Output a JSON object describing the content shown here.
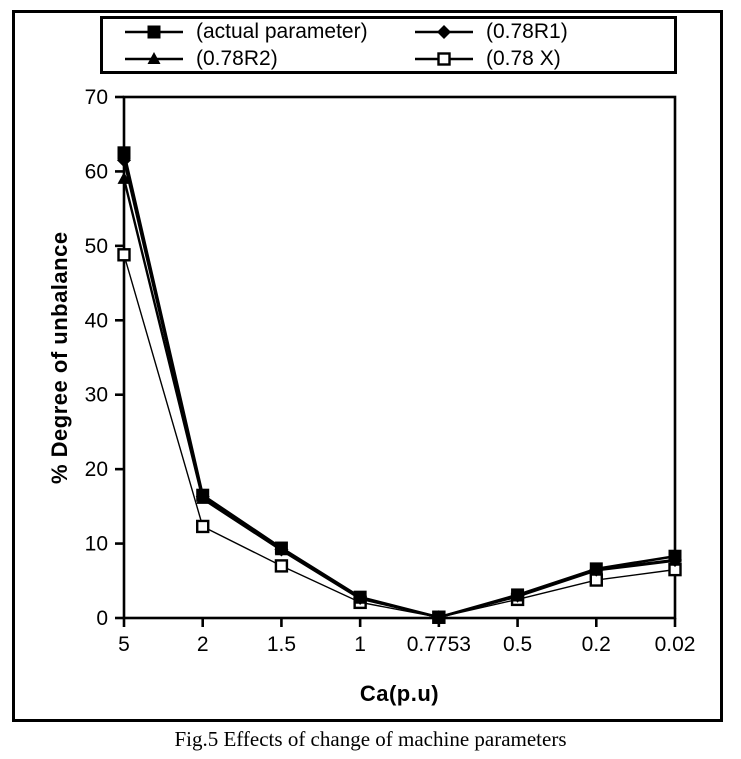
{
  "figure": {
    "caption": "Fig.5 Effects of change of machine parameters"
  },
  "colors": {
    "foreground": "#000000",
    "background": "#ffffff"
  },
  "chart_data": {
    "type": "line",
    "title": "",
    "xlabel": "Ca(p.u)",
    "ylabel": "% Degree of unbalance",
    "categories": [
      "5",
      "2",
      "1.5",
      "1",
      "0.7753",
      "0.5",
      "0.2",
      "0.02"
    ],
    "ylim": [
      0,
      70
    ],
    "yticks": [
      0,
      10,
      20,
      30,
      40,
      50,
      60,
      70
    ],
    "grid": false,
    "legend_position": "top",
    "series": [
      {
        "name": "(actual parameter)",
        "marker": "square-filled",
        "line_width": 2.6,
        "values": [
          62.5,
          16.5,
          9.4,
          2.8,
          0.1,
          3.1,
          6.6,
          8.3
        ]
      },
      {
        "name": "(0.78R1)",
        "marker": "diamond-filled",
        "line_width": 2.4,
        "values": [
          61.5,
          16.3,
          9.2,
          2.7,
          0.1,
          3.0,
          6.5,
          7.8
        ]
      },
      {
        "name": "(0.78R2)",
        "marker": "triangle-filled",
        "line_width": 2.4,
        "values": [
          59.0,
          16.0,
          9.1,
          2.6,
          0.1,
          2.9,
          6.4,
          7.7
        ]
      },
      {
        "name": "(0.78 X)",
        "marker": "square-open",
        "line_width": 1.4,
        "values": [
          48.8,
          12.3,
          7.0,
          2.1,
          0.1,
          2.5,
          5.1,
          6.5
        ]
      }
    ]
  }
}
